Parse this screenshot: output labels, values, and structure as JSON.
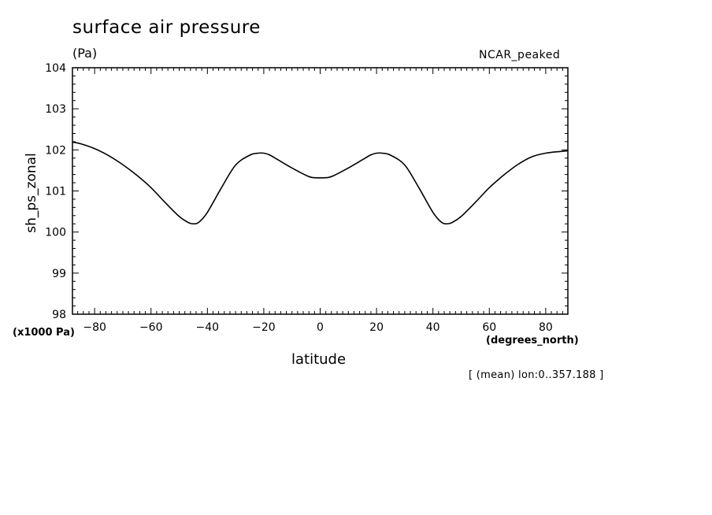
{
  "chart_data": {
    "type": "line",
    "title": "surface air pressure",
    "units_label": "(Pa)",
    "model_label": "NCAR_peaked",
    "xlabel": "latitude",
    "ylabel": "sh_ps_zonal",
    "x_units": "(degrees_north)",
    "y_scale_label": "(x1000 Pa)",
    "footnote": "[ (mean) lon:0..357.188 ]",
    "xlim": [
      -87.86,
      87.86
    ],
    "ylim": [
      98,
      104
    ],
    "x_ticks": [
      -80,
      -60,
      -40,
      -20,
      0,
      20,
      40,
      60,
      80
    ],
    "y_ticks": [
      98,
      99,
      100,
      101,
      102,
      103,
      104
    ],
    "series": [
      {
        "name": "sh_ps_zonal",
        "x": [
          -87.86,
          -85,
          -80,
          -75,
          -70,
          -65,
          -60,
          -55,
          -50,
          -47,
          -45,
          -43,
          -40,
          -35,
          -30,
          -25,
          -22,
          -20,
          -18,
          -15,
          -10,
          -5,
          -3,
          0,
          3,
          5,
          10,
          15,
          18,
          20,
          22,
          25,
          30,
          35,
          40,
          43,
          45,
          47,
          50,
          55,
          60,
          65,
          70,
          75,
          80,
          85,
          87.86
        ],
        "values": [
          102.19,
          102.15,
          102.03,
          101.86,
          101.64,
          101.38,
          101.08,
          100.72,
          100.38,
          100.24,
          100.2,
          100.24,
          100.48,
          101.08,
          101.63,
          101.87,
          101.92,
          101.92,
          101.88,
          101.76,
          101.56,
          101.38,
          101.33,
          101.32,
          101.33,
          101.38,
          101.56,
          101.76,
          101.88,
          101.92,
          101.92,
          101.87,
          101.63,
          101.08,
          100.48,
          100.24,
          100.2,
          100.24,
          100.38,
          100.72,
          101.08,
          101.38,
          101.64,
          101.83,
          101.92,
          101.96,
          101.98
        ]
      }
    ]
  }
}
